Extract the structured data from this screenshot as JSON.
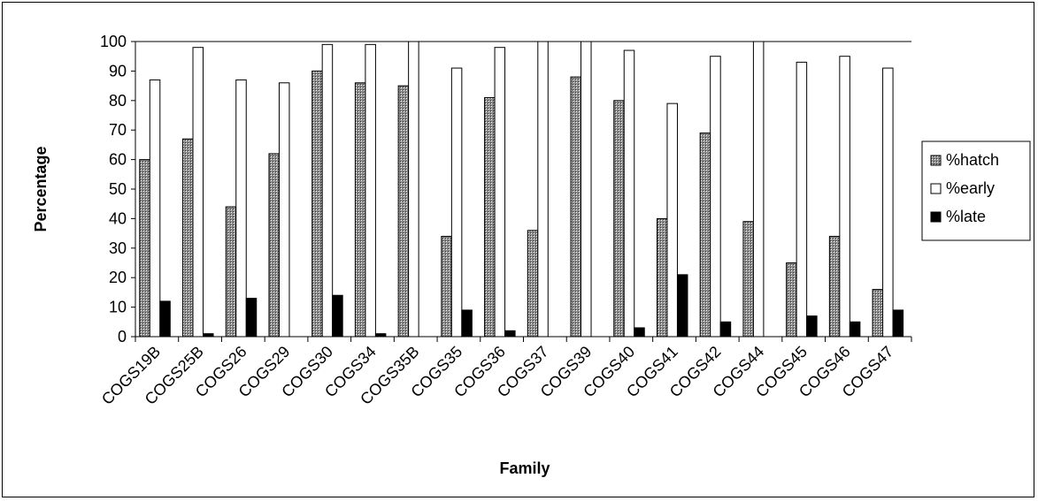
{
  "chart_data": {
    "type": "bar",
    "title": "",
    "xlabel": "Family",
    "ylabel": "Percentage",
    "ylim": [
      0,
      100
    ],
    "yticks": [
      0,
      10,
      20,
      30,
      40,
      50,
      60,
      70,
      80,
      90,
      100
    ],
    "grid": "horizontal line at 100 only",
    "legend_position": "right",
    "categories": [
      "COGS19B",
      "COGS25B",
      "COGS26",
      "COGS29",
      "COGS30",
      "COGS34",
      "COGS35B",
      "COGS35",
      "COGS36",
      "COGS37",
      "COGS39",
      "COGS40",
      "COGS41",
      "COGS42",
      "COGS44",
      "COGS45",
      "COGS46",
      "COGS47"
    ],
    "series": [
      {
        "name": "%hatch",
        "style": "dark-dotted",
        "values": [
          60,
          67,
          44,
          62,
          90,
          86,
          85,
          34,
          81,
          36,
          88,
          80,
          40,
          69,
          39,
          25,
          34,
          16
        ]
      },
      {
        "name": "%early",
        "style": "white",
        "values": [
          87,
          98,
          87,
          86,
          99,
          99,
          100,
          91,
          98,
          100,
          100,
          97,
          79,
          95,
          100,
          93,
          95,
          91
        ]
      },
      {
        "name": "%late",
        "style": "black",
        "values": [
          12,
          1,
          13,
          0,
          14,
          1,
          0,
          9,
          2,
          0,
          0,
          3,
          21,
          5,
          0,
          7,
          5,
          9
        ]
      }
    ]
  }
}
